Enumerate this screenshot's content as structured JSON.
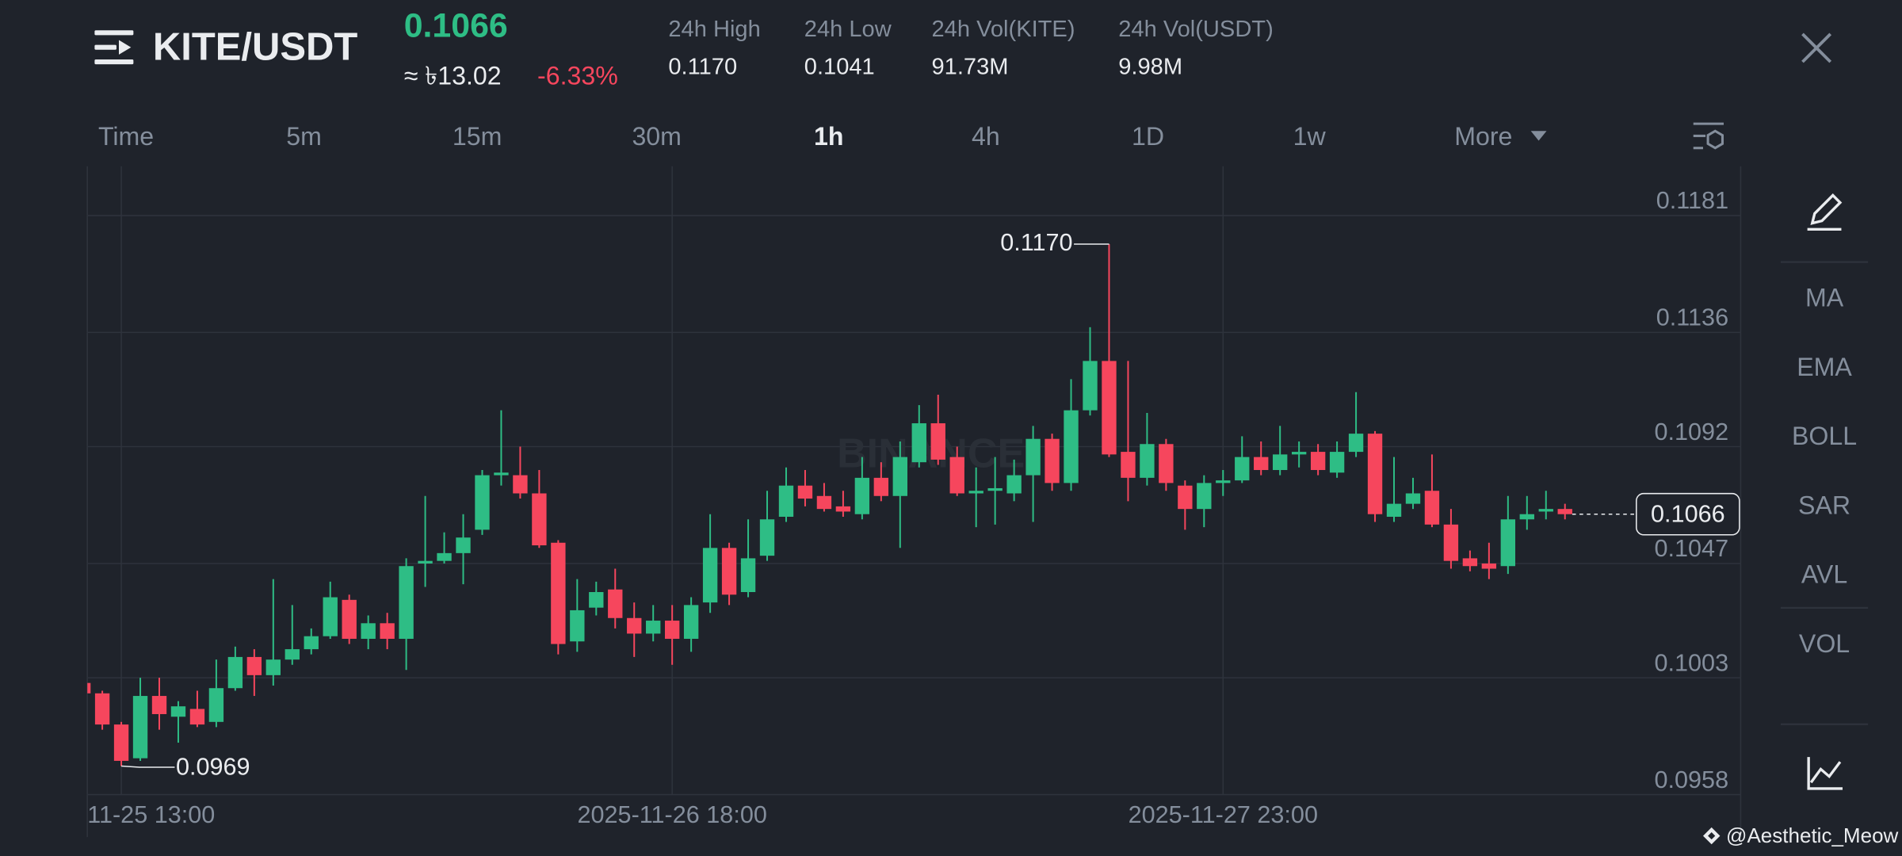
{
  "header": {
    "symbol": "KITE/USDT",
    "price": "0.1066",
    "fiat_price": "≈ ৳13.02",
    "change": "-6.33%",
    "stats": [
      {
        "label": "24h High",
        "value": "0.1170"
      },
      {
        "label": "24h Low",
        "value": "0.1041"
      },
      {
        "label": "24h Vol(KITE)",
        "value": "91.73M"
      },
      {
        "label": "24h Vol(USDT)",
        "value": "9.98M"
      }
    ]
  },
  "tabs": [
    "Time",
    "5m",
    "15m",
    "30m",
    "1h",
    "4h",
    "1D",
    "1w",
    "More"
  ],
  "active_tab_index": 4,
  "indicators": [
    "MA",
    "EMA",
    "BOLL",
    "SAR",
    "AVL",
    "VOL"
  ],
  "credit": "@Aesthetic_Meow",
  "chart_data": {
    "type": "candlestick",
    "watermark": "BINANCE",
    "up_color": "#2ebd85",
    "down_color": "#f6465d",
    "categories": [
      null,
      null,
      "11-25 13:00",
      null,
      null,
      null,
      null,
      null,
      null,
      null,
      null,
      null,
      null,
      null,
      null,
      null,
      null,
      null,
      null,
      null,
      null,
      null,
      null,
      null,
      null,
      null,
      null,
      null,
      null,
      null,
      null,
      "2025-11-26 18:00",
      null,
      null,
      null,
      null,
      null,
      null,
      null,
      null,
      null,
      null,
      null,
      null,
      null,
      null,
      null,
      null,
      null,
      null,
      null,
      null,
      null,
      null,
      null,
      null,
      null,
      null,
      null,
      null,
      "2025-11-27 23:00",
      null,
      null,
      null,
      null,
      null,
      null,
      null,
      null,
      null,
      null,
      null,
      null,
      null,
      null,
      null,
      null,
      null,
      null
    ],
    "open": [
      0.1001,
      0.0997,
      0.0985,
      0.0972,
      0.0996,
      0.0988,
      0.0991,
      0.0986,
      0.0999,
      0.1011,
      0.1004,
      0.101,
      0.1014,
      0.1019,
      0.1033,
      0.1018,
      0.1024,
      0.1018,
      0.1047,
      0.1048,
      0.1051,
      0.106,
      0.1081,
      0.1081,
      0.1074,
      0.1055,
      0.1017,
      0.103,
      0.1037,
      0.1026,
      0.102,
      0.1025,
      0.1018,
      0.1032,
      0.1053,
      0.1036,
      0.105,
      0.1065,
      0.1077,
      0.1073,
      0.1069,
      0.1066,
      0.108,
      0.1073,
      0.1086,
      0.1101,
      0.1088,
      0.1074,
      0.1075,
      0.1074,
      0.1081,
      0.1095,
      0.1078,
      0.1106,
      0.1125,
      0.109,
      0.108,
      0.1093,
      0.1077,
      0.1068,
      0.1078,
      0.1079,
      0.1088,
      0.1083,
      0.1089,
      0.109,
      0.1082,
      0.109,
      0.1097,
      0.1065,
      0.107,
      0.1075,
      0.1062,
      0.1049,
      0.1047,
      0.1046,
      0.1064,
      0.1067,
      0.1068
    ],
    "high": [
      0.1003,
      0.0998,
      0.0986,
      0.1003,
      0.1003,
      0.0994,
      0.0998,
      0.101,
      0.1015,
      0.1014,
      0.1041,
      0.1031,
      0.1022,
      0.104,
      0.1035,
      0.1027,
      0.1028,
      0.1049,
      0.1073,
      0.1059,
      0.1066,
      0.1083,
      0.1106,
      0.1092,
      0.1083,
      0.1056,
      0.1041,
      0.104,
      0.1045,
      0.1032,
      0.1031,
      0.1031,
      0.1034,
      0.1066,
      0.1055,
      0.1064,
      0.1075,
      0.1084,
      0.1083,
      0.1078,
      0.1075,
      0.1088,
      0.1086,
      0.1094,
      0.1108,
      0.1112,
      0.1092,
      0.1084,
      0.1088,
      0.1087,
      0.11,
      0.1097,
      0.1118,
      0.1138,
      0.117,
      0.1125,
      0.1105,
      0.1095,
      0.1079,
      0.1081,
      0.1083,
      0.1096,
      0.1094,
      0.11,
      0.1094,
      0.1093,
      0.1094,
      0.1113,
      0.1098,
      0.1088,
      0.108,
      0.1089,
      0.1068,
      0.1052,
      0.1055,
      0.1073,
      0.1073,
      0.1075,
      0.107
    ],
    "low": [
      0.0996,
      0.0983,
      0.0969,
      0.0971,
      0.0983,
      0.0978,
      0.0984,
      0.0984,
      0.0998,
      0.0996,
      0.1,
      0.1008,
      0.1012,
      0.1018,
      0.1016,
      0.1014,
      0.1014,
      0.1006,
      0.1038,
      0.1047,
      0.1039,
      0.1058,
      0.1077,
      0.1072,
      0.1053,
      0.1012,
      0.1013,
      0.1027,
      0.1022,
      0.1011,
      0.1017,
      0.1008,
      0.1013,
      0.1028,
      0.1031,
      0.1034,
      0.1048,
      0.1063,
      0.1069,
      0.1067,
      0.1065,
      0.1064,
      0.1071,
      0.1053,
      0.1084,
      0.1085,
      0.1073,
      0.1061,
      0.1062,
      0.1071,
      0.1063,
      0.1075,
      0.1075,
      0.1104,
      0.1088,
      0.1071,
      0.1077,
      0.1075,
      0.106,
      0.1061,
      0.1073,
      0.1078,
      0.1081,
      0.1081,
      0.1084,
      0.1081,
      0.108,
      0.1088,
      0.1063,
      0.1063,
      0.1068,
      0.1061,
      0.1045,
      0.1044,
      0.1041,
      0.1043,
      0.106,
      0.1064,
      0.1064
    ],
    "close": [
      0.0997,
      0.0985,
      0.0971,
      0.0996,
      0.0989,
      0.0992,
      0.0985,
      0.0999,
      0.1011,
      0.1004,
      0.101,
      0.1014,
      0.1019,
      0.1034,
      0.1018,
      0.1024,
      0.1018,
      0.1046,
      0.1048,
      0.1051,
      0.1057,
      0.1081,
      0.1082,
      0.1074,
      0.1054,
      0.1016,
      0.1029,
      0.1036,
      0.1026,
      0.102,
      0.1025,
      0.1018,
      0.1031,
      0.1053,
      0.1035,
      0.1049,
      0.1064,
      0.1077,
      0.1072,
      0.1068,
      0.1067,
      0.108,
      0.1073,
      0.1088,
      0.1101,
      0.1087,
      0.1074,
      0.1075,
      0.1076,
      0.1081,
      0.1095,
      0.1078,
      0.1106,
      0.1125,
      0.1089,
      0.108,
      0.1093,
      0.1078,
      0.1068,
      0.1078,
      0.1079,
      0.1088,
      0.1083,
      0.1089,
      0.109,
      0.1083,
      0.109,
      0.1097,
      0.1066,
      0.107,
      0.1074,
      0.1062,
      0.1048,
      0.1046,
      0.1045,
      0.1064,
      0.1066,
      0.1068,
      0.1066
    ],
    "ylim": [
      0.0958,
      0.12
    ],
    "yticks": [
      0.1181,
      0.1136,
      0.1092,
      0.1047,
      0.1003,
      0.0958
    ],
    "grid": true,
    "high_label": {
      "value": 0.117,
      "label": "0.1170"
    },
    "low_label": {
      "value": 0.0969,
      "label": "0.0969"
    },
    "last_price": {
      "value": 0.1066,
      "label": "0.1066"
    }
  }
}
